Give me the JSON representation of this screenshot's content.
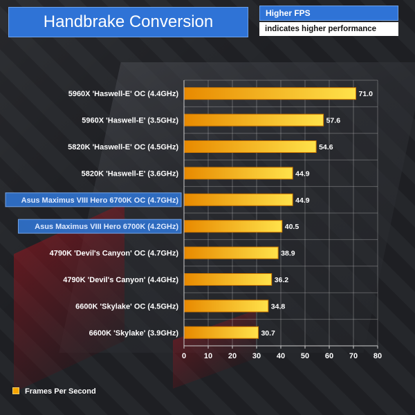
{
  "header": {
    "title": "Handbrake Conversion",
    "higher_label": "Higher FPS",
    "indicates_label": "indicates higher performance"
  },
  "colors": {
    "bar_fill_start": "#e88a00",
    "bar_fill_end": "#ffe24a",
    "bar_stroke": "#d07800",
    "highlight_label_bg": "#2f6fc7",
    "title_bg": "#2f73d6"
  },
  "chart_data": {
    "type": "bar",
    "orientation": "horizontal",
    "title": "Handbrake Conversion",
    "categories": [
      "5960X 'Haswell-E' OC (4.4GHz)",
      "5960X 'Haswell-E' (3.5GHz)",
      "5820K 'Haswell-E' OC (4.5GHz)",
      "5820K 'Haswell-E' (3.6GHz)",
      "Asus Maximus VIII Hero 6700K OC (4.7GHz)",
      "Asus Maximus VIII Hero 6700K (4.2GHz)",
      "4790K 'Devil's Canyon' OC (4.7GHz)",
      "4790K 'Devil's Canyon' (4.4GHz)",
      "6600K 'Skylake' OC (4.5GHz)",
      "6600K 'Skylake' (3.9GHz)"
    ],
    "highlighted": [
      false,
      false,
      false,
      false,
      true,
      true,
      false,
      false,
      false,
      false
    ],
    "series": [
      {
        "name": "Frames Per Second",
        "values": [
          71.0,
          57.6,
          54.6,
          44.9,
          44.9,
          40.5,
          38.9,
          36.2,
          34.8,
          30.7
        ]
      }
    ],
    "value_labels": [
      "71.0",
      "57.6",
      "54.6",
      "44.9",
      "44.9",
      "40.5",
      "38.9",
      "36.2",
      "34.8",
      "30.7"
    ],
    "xlim": [
      0,
      80
    ],
    "xticks": [
      0,
      10,
      20,
      30,
      40,
      50,
      60,
      70,
      80
    ],
    "xlabel": "",
    "ylabel": "",
    "grid": true,
    "legend": "bottom-left"
  }
}
